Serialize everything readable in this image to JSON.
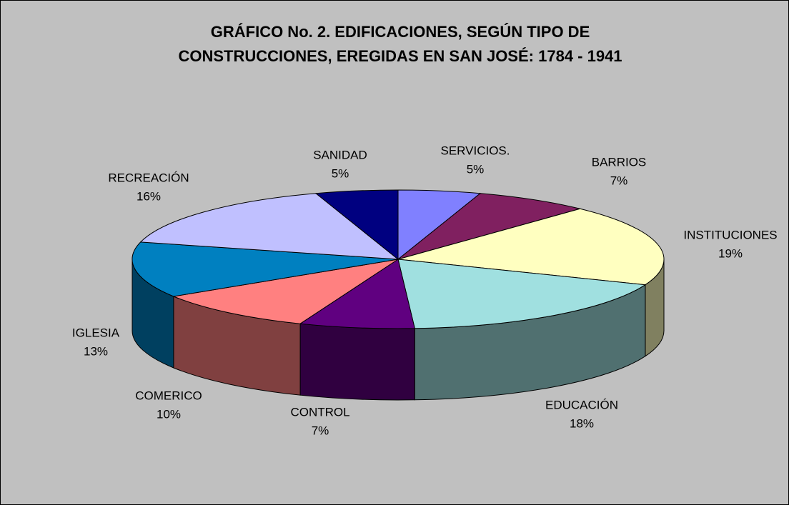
{
  "chart_data": {
    "type": "pie3d",
    "title": [
      "GRÁFICO No. 2.   EDIFICACIONES, SEGÚN TIPO DE",
      "CONSTRUCCIONES,  EREGIDAS EN SAN JOSÉ: 1784 - 1941"
    ],
    "categories": [
      "SERVICIOS.",
      "BARRIOS",
      "INSTITUCIONES",
      "EDUCACIÓN",
      "CONTROL",
      "COMERICO",
      "IGLESIA",
      "RECREACIÓN",
      "SANIDAD"
    ],
    "values": [
      5,
      7,
      19,
      18,
      7,
      10,
      13,
      16,
      5
    ],
    "value_labels": [
      "5%",
      "7%",
      "19%",
      "18%",
      "7%",
      "10%",
      "13%",
      "16%",
      "5%"
    ],
    "colors": [
      "#8080ff",
      "#802060",
      "#ffffc0",
      "#a0e0e0",
      "#600080",
      "#ff8080",
      "#0080c0",
      "#c0c0ff",
      "#000080"
    ]
  }
}
